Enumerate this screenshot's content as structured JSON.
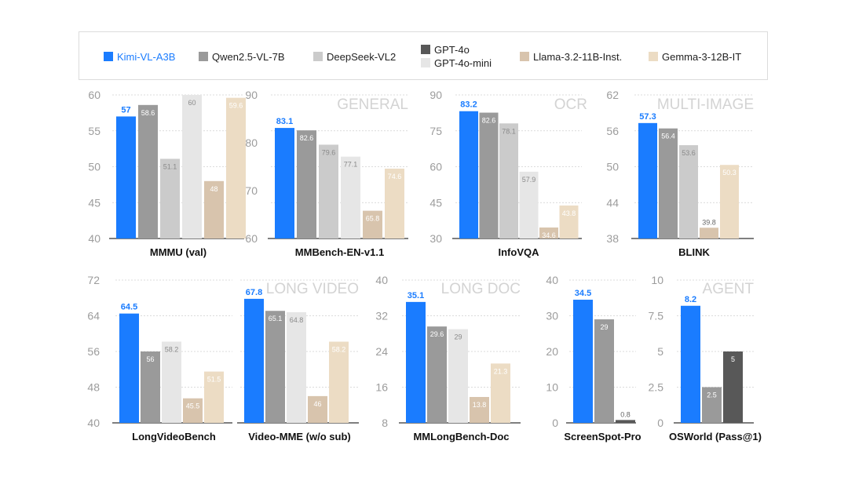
{
  "legend": [
    {
      "label": "Kimi-VL-A3B",
      "color": "#1a7cff",
      "text_color": "#1a7cff"
    },
    {
      "label": "Qwen2.5-VL-7B",
      "color": "#9a9a9a",
      "text_color": "#222222"
    },
    {
      "label": "DeepSeek-VL2",
      "color": "#cbcbcb",
      "text_color": "#222222"
    },
    {
      "label": "GPT-4o",
      "color": "#585858",
      "text_color": "#222222"
    },
    {
      "label": "GPT-4o-mini",
      "color": "#e6e6e6",
      "text_color": "#222222"
    },
    {
      "label": "Llama-3.2-11B-Inst.",
      "color": "#d8c4ad",
      "text_color": "#222222"
    },
    {
      "label": "Gemma-3-12B-IT",
      "color": "#ecdcc4",
      "text_color": "#222222"
    }
  ],
  "section_labels": [
    "GENERAL",
    "OCR",
    "MULTI-IMAGE",
    "LONG VIDEO",
    "LONG DOC",
    "AGENT"
  ],
  "chart_data": [
    {
      "type": "bar",
      "title": "MMMU (val)",
      "ylim": [
        40,
        60
      ],
      "yticks": [
        "40",
        "45",
        "50",
        "55",
        "60"
      ],
      "bars": [
        {
          "series": "Kimi-VL-A3B",
          "value": 57,
          "label": "57"
        },
        {
          "series": "Qwen2.5-VL-7B",
          "value": 58.6,
          "label": "58.6"
        },
        {
          "series": "DeepSeek-VL2",
          "value": 51.1,
          "label": "51.1"
        },
        {
          "series": "GPT-4o-mini",
          "value": 60,
          "label": "60"
        },
        {
          "series": "Llama-3.2-11B-Inst.",
          "value": 48,
          "label": "48"
        },
        {
          "series": "Gemma-3-12B-IT",
          "value": 59.6,
          "label": "59.6"
        }
      ]
    },
    {
      "type": "bar",
      "title": "MMBench-EN-v1.1",
      "ylim": [
        60,
        90
      ],
      "yticks": [
        "60",
        "70",
        "80",
        "90"
      ],
      "bars": [
        {
          "series": "Kimi-VL-A3B",
          "value": 83.1,
          "label": "83.1"
        },
        {
          "series": "Qwen2.5-VL-7B",
          "value": 82.6,
          "label": "82.6"
        },
        {
          "series": "DeepSeek-VL2",
          "value": 79.6,
          "label": "79.6"
        },
        {
          "series": "GPT-4o-mini",
          "value": 77.1,
          "label": "77.1"
        },
        {
          "series": "Llama-3.2-11B-Inst.",
          "value": 65.8,
          "label": "65.8"
        },
        {
          "series": "Gemma-3-12B-IT",
          "value": 74.6,
          "label": "74.6"
        }
      ]
    },
    {
      "type": "bar",
      "title": "InfoVQA",
      "ylim": [
        30,
        90
      ],
      "yticks": [
        "30",
        "45",
        "60",
        "75",
        "90"
      ],
      "bars": [
        {
          "series": "Kimi-VL-A3B",
          "value": 83.2,
          "label": "83.2"
        },
        {
          "series": "Qwen2.5-VL-7B",
          "value": 82.6,
          "label": "82.6"
        },
        {
          "series": "DeepSeek-VL2",
          "value": 78.1,
          "label": "78.1"
        },
        {
          "series": "GPT-4o-mini",
          "value": 57.9,
          "label": "57.9"
        },
        {
          "series": "Llama-3.2-11B-Inst.",
          "value": 34.6,
          "label": "34.6"
        },
        {
          "series": "Gemma-3-12B-IT",
          "value": 43.8,
          "label": "43.8"
        }
      ]
    },
    {
      "type": "bar",
      "title": "BLINK",
      "ylim": [
        38,
        62
      ],
      "yticks": [
        "38",
        "44",
        "50",
        "56",
        "62"
      ],
      "bars": [
        {
          "series": "Kimi-VL-A3B",
          "value": 57.3,
          "label": "57.3"
        },
        {
          "series": "Qwen2.5-VL-7B",
          "value": 56.4,
          "label": "56.4"
        },
        {
          "series": "DeepSeek-VL2",
          "value": 53.6,
          "label": "53.6"
        },
        {
          "series": "Llama-3.2-11B-Inst.",
          "value": 39.8,
          "label": "39.8"
        },
        {
          "series": "Gemma-3-12B-IT",
          "value": 50.3,
          "label": "50.3"
        }
      ]
    },
    {
      "type": "bar",
      "title": "LongVideoBench",
      "ylim": [
        40,
        72
      ],
      "yticks": [
        "40",
        "48",
        "56",
        "64",
        "72"
      ],
      "bars": [
        {
          "series": "Kimi-VL-A3B",
          "value": 64.5,
          "label": "64.5"
        },
        {
          "series": "Qwen2.5-VL-7B",
          "value": 56,
          "label": "56"
        },
        {
          "series": "GPT-4o-mini",
          "value": 58.2,
          "label": "58.2"
        },
        {
          "series": "Llama-3.2-11B-Inst.",
          "value": 45.5,
          "label": "45.5"
        },
        {
          "series": "Gemma-3-12B-IT",
          "value": 51.5,
          "label": "51.5"
        }
      ]
    },
    {
      "type": "bar",
      "title": "Video-MME (w/o sub)",
      "ylim": [
        40,
        72
      ],
      "bars": [
        {
          "series": "Kimi-VL-A3B",
          "value": 67.8,
          "label": "67.8"
        },
        {
          "series": "Qwen2.5-VL-7B",
          "value": 65.1,
          "label": "65.1"
        },
        {
          "series": "GPT-4o-mini",
          "value": 64.8,
          "label": "64.8"
        },
        {
          "series": "Llama-3.2-11B-Inst.",
          "value": 46,
          "label": "46"
        },
        {
          "series": "Gemma-3-12B-IT",
          "value": 58.2,
          "label": "58.2"
        }
      ]
    },
    {
      "type": "bar",
      "title": "MMLongBench-Doc",
      "ylim": [
        8,
        40
      ],
      "yticks": [
        "8",
        "16",
        "24",
        "32",
        "40"
      ],
      "bars": [
        {
          "series": "Kimi-VL-A3B",
          "value": 35.1,
          "label": "35.1"
        },
        {
          "series": "Qwen2.5-VL-7B",
          "value": 29.6,
          "label": "29.6"
        },
        {
          "series": "GPT-4o-mini",
          "value": 29,
          "label": "29"
        },
        {
          "series": "Llama-3.2-11B-Inst.",
          "value": 13.8,
          "label": "13.8"
        },
        {
          "series": "Gemma-3-12B-IT",
          "value": 21.3,
          "label": "21.3"
        }
      ]
    },
    {
      "type": "bar",
      "title": "ScreenSpot-Pro",
      "ylim": [
        0,
        40
      ],
      "yticks": [
        "0",
        "10",
        "20",
        "30",
        "40"
      ],
      "bars": [
        {
          "series": "Kimi-VL-A3B",
          "value": 34.5,
          "label": "34.5"
        },
        {
          "series": "Qwen2.5-VL-7B",
          "value": 29,
          "label": "29"
        },
        {
          "series": "GPT-4o",
          "value": 0.8,
          "label": "0.8"
        }
      ]
    },
    {
      "type": "bar",
      "title": "OSWorld (Pass@1)",
      "ylim": [
        0,
        10
      ],
      "yticks": [
        "0",
        "2.5",
        "5",
        "7.5",
        "10"
      ],
      "bars": [
        {
          "series": "Kimi-VL-A3B",
          "value": 8.2,
          "label": "8.2"
        },
        {
          "series": "Qwen2.5-VL-7B",
          "value": 2.5,
          "label": "2.5"
        },
        {
          "series": "GPT-4o",
          "value": 5,
          "label": "5"
        }
      ]
    }
  ]
}
